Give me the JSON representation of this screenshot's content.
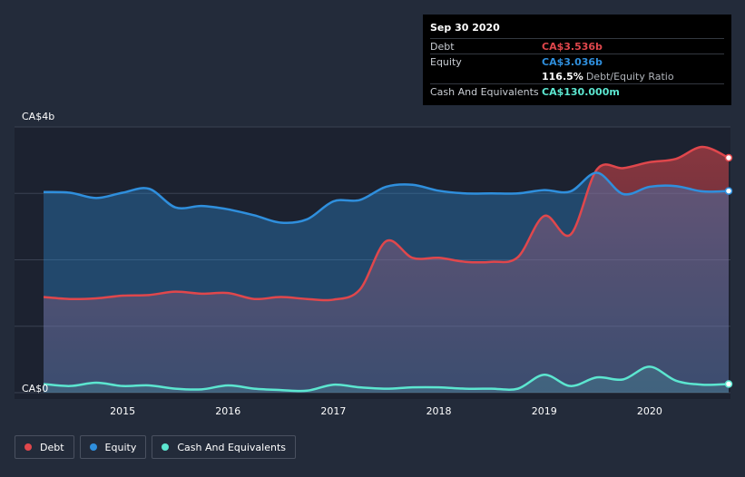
{
  "tooltip": {
    "date": "Sep 30 2020",
    "debt_label": "Debt",
    "debt_value": "CA$3.536b",
    "equity_label": "Equity",
    "equity_value": "CA$3.036b",
    "ratio_value": "116.5%",
    "ratio_label": "Debt/Equity Ratio",
    "cash_label": "Cash And Equivalents",
    "cash_value": "CA$130.000m"
  },
  "legend": {
    "debt": "Debt",
    "equity": "Equity",
    "cash": "Cash And Equivalents"
  },
  "colors": {
    "debt": "#e0474c",
    "equity": "#2f8fdd",
    "cash": "#5ce6d0",
    "background": "#232b3a"
  },
  "chart_data": {
    "type": "area",
    "y_unit": "CA$ billions",
    "ylim": [
      0,
      4
    ],
    "y_tick_labels": [
      "CA$0",
      "CA$4b"
    ],
    "x_tick_labels": [
      "2015",
      "2016",
      "2017",
      "2018",
      "2019",
      "2020"
    ],
    "xlim": [
      2014.25,
      2020.75
    ],
    "grid": true,
    "legend_position": "bottom-left",
    "series": [
      {
        "name": "Debt",
        "x": [
          2014.25,
          2014.5,
          2014.75,
          2015.0,
          2015.25,
          2015.5,
          2015.75,
          2016.0,
          2016.25,
          2016.5,
          2016.75,
          2017.0,
          2017.25,
          2017.5,
          2017.75,
          2018.0,
          2018.25,
          2018.5,
          2018.75,
          2019.0,
          2019.25,
          2019.5,
          2019.75,
          2020.0,
          2020.25,
          2020.5,
          2020.75
        ],
        "values": [
          1.44,
          1.41,
          1.42,
          1.46,
          1.47,
          1.52,
          1.49,
          1.5,
          1.41,
          1.44,
          1.41,
          1.4,
          1.55,
          2.28,
          2.03,
          2.03,
          1.97,
          1.97,
          2.04,
          2.66,
          2.38,
          3.36,
          3.38,
          3.47,
          3.52,
          3.7,
          3.536
        ]
      },
      {
        "name": "Equity",
        "x": [
          2014.25,
          2014.5,
          2014.75,
          2015.0,
          2015.25,
          2015.5,
          2015.75,
          2016.0,
          2016.25,
          2016.5,
          2016.75,
          2017.0,
          2017.25,
          2017.5,
          2017.75,
          2018.0,
          2018.25,
          2018.5,
          2018.75,
          2019.0,
          2019.25,
          2019.5,
          2019.75,
          2020.0,
          2020.25,
          2020.5,
          2020.75
        ],
        "values": [
          3.02,
          3.01,
          2.93,
          3.01,
          3.07,
          2.79,
          2.81,
          2.76,
          2.67,
          2.56,
          2.61,
          2.88,
          2.9,
          3.1,
          3.13,
          3.04,
          3.0,
          3.0,
          3.0,
          3.05,
          3.03,
          3.31,
          2.99,
          3.1,
          3.11,
          3.03,
          3.036
        ]
      },
      {
        "name": "Cash And Equivalents",
        "x": [
          2014.25,
          2014.5,
          2014.75,
          2015.0,
          2015.25,
          2015.5,
          2015.75,
          2016.0,
          2016.25,
          2016.5,
          2016.75,
          2017.0,
          2017.25,
          2017.5,
          2017.75,
          2018.0,
          2018.25,
          2018.5,
          2018.75,
          2019.0,
          2019.25,
          2019.5,
          2019.75,
          2020.0,
          2020.25,
          2020.5,
          2020.75
        ],
        "values": [
          0.13,
          0.1,
          0.15,
          0.1,
          0.11,
          0.06,
          0.05,
          0.11,
          0.06,
          0.04,
          0.03,
          0.12,
          0.08,
          0.06,
          0.08,
          0.08,
          0.06,
          0.06,
          0.06,
          0.27,
          0.1,
          0.23,
          0.2,
          0.39,
          0.18,
          0.12,
          0.13
        ]
      }
    ]
  }
}
